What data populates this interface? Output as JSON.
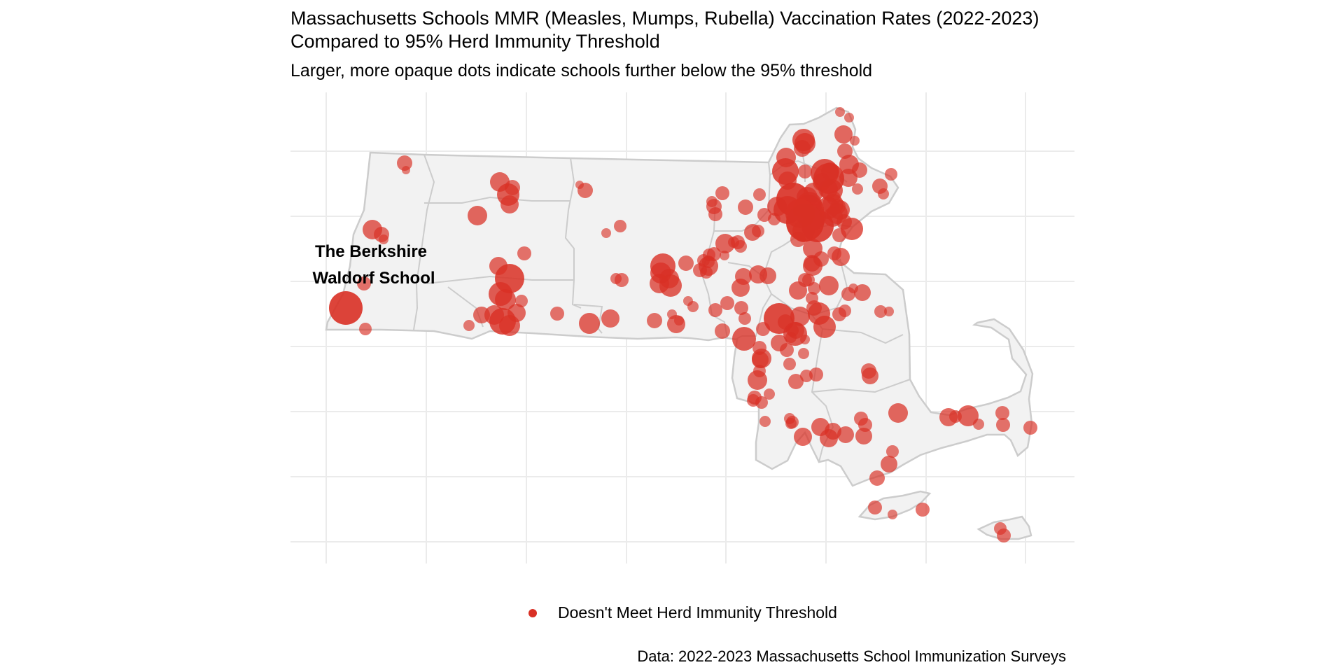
{
  "title_line1": "Massachusetts Schools MMR (Measles, Mumps, Rubella) Vaccination Rates (2022-2023)",
  "title_line2": "Compared to 95% Herd Immunity Threshold",
  "subtitle": "Larger, more opaque dots indicate schools further below the 95% threshold",
  "highlight_label_line1": "The Berkshire",
  "highlight_label_line2": "Waldorf School",
  "legend_label": "Doesn't Meet Herd Immunity Threshold",
  "caption": "Data: 2022-2023 Massachusetts School Immunization Surveys",
  "colors": {
    "point": "#d93025",
    "land": "#f2f2f2",
    "border": "#cccccc",
    "grid": "#ebebeb"
  },
  "map_type": "point map over state outline with county borders",
  "points_summary": "schools below the 95% MMR threshold shown as red circles; size and opacity increase with the distance below the threshold"
}
